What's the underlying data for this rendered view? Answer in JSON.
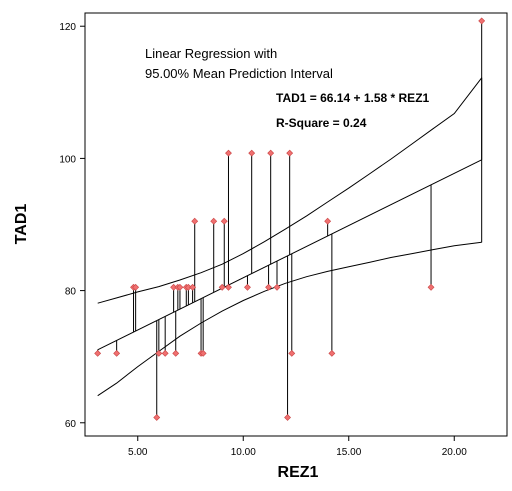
{
  "chart_data": {
    "type": "scatter",
    "title": "",
    "xlabel": "REZ1",
    "ylabel": "TAD1",
    "xlim": [
      2.5,
      22.5
    ],
    "ylim": [
      58,
      122
    ],
    "x_ticks": [
      5,
      10,
      15,
      20
    ],
    "x_tick_labels": [
      "5.00",
      "10.00",
      "15.00",
      "20.00"
    ],
    "y_ticks": [
      60,
      80,
      100,
      120
    ],
    "y_tick_labels": [
      "60",
      "80",
      "100",
      "120"
    ],
    "grid": false,
    "legend": "none",
    "annotations": {
      "method_line1": "Linear Regression with",
      "method_line2": "95.00% Mean Prediction Interval",
      "equation": "TAD1 = 66.14 + 1.58 * REZ1",
      "r_square": "R-Square = 0.24"
    },
    "regression": {
      "intercept": 66.14,
      "slope": 1.58,
      "x_range": [
        3.1,
        21.3
      ]
    },
    "mean_interval": {
      "x": [
        3.1,
        4,
        5,
        6,
        7,
        8,
        9,
        10,
        11,
        12,
        13,
        14,
        15,
        16,
        17,
        18,
        19,
        20,
        21.3
      ],
      "upper": [
        78.1,
        78.9,
        79.8,
        80.6,
        81.6,
        82.7,
        84.0,
        85.6,
        87.4,
        89.3,
        91.3,
        93.4,
        95.5,
        97.7,
        99.9,
        102.2,
        104.5,
        106.8,
        112.2
      ],
      "lower": [
        64.1,
        66.0,
        68.5,
        70.8,
        73.1,
        75.1,
        76.9,
        78.5,
        79.9,
        81.1,
        82.1,
        82.9,
        83.6,
        84.3,
        85.0,
        85.6,
        86.2,
        86.8,
        87.3
      ]
    },
    "series": [
      {
        "marker_color": "#f07070",
        "points": [
          [
            3.1,
            70.5
          ],
          [
            4.0,
            70.5
          ],
          [
            4.8,
            80.5
          ],
          [
            4.9,
            80.5
          ],
          [
            5.9,
            60.8
          ],
          [
            6.0,
            70.5
          ],
          [
            6.3,
            70.5
          ],
          [
            6.7,
            80.5
          ],
          [
            6.8,
            70.5
          ],
          [
            6.9,
            80.5
          ],
          [
            7.0,
            80.5
          ],
          [
            7.3,
            80.5
          ],
          [
            7.4,
            80.5
          ],
          [
            7.6,
            80.5
          ],
          [
            7.7,
            90.5
          ],
          [
            8.0,
            70.5
          ],
          [
            8.1,
            70.5
          ],
          [
            8.6,
            90.5
          ],
          [
            9.0,
            80.5
          ],
          [
            9.1,
            90.5
          ],
          [
            9.3,
            80.5
          ],
          [
            9.3,
            100.8
          ],
          [
            10.2,
            80.5
          ],
          [
            10.4,
            100.8
          ],
          [
            11.2,
            80.5
          ],
          [
            11.3,
            100.8
          ],
          [
            11.6,
            80.5
          ],
          [
            12.1,
            60.8
          ],
          [
            12.2,
            100.8
          ],
          [
            12.3,
            70.5
          ],
          [
            14.0,
            90.5
          ],
          [
            14.2,
            70.5
          ],
          [
            18.9,
            80.5
          ],
          [
            21.3,
            120.8
          ]
        ]
      }
    ]
  }
}
